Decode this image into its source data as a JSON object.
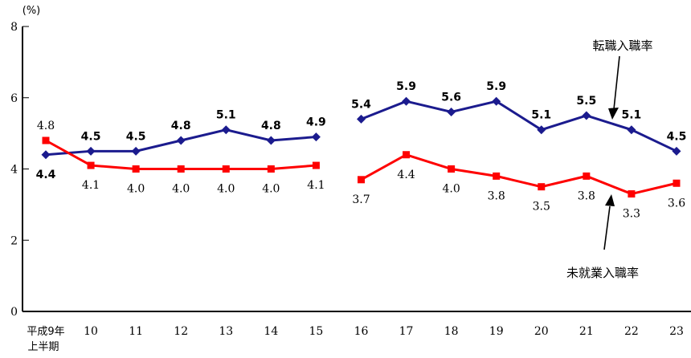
{
  "chart_data": {
    "type": "line",
    "title": "",
    "unit_label": "(%)",
    "xlabel": "",
    "ylabel": "(%)",
    "ylim": [
      0,
      8
    ],
    "yticks": [
      0,
      2,
      4,
      6,
      8
    ],
    "grid": false,
    "legend_position": "none (arrow annotations on plot)",
    "categories": [
      [
        "平成9年",
        "上半期"
      ],
      "10",
      "11",
      "12",
      "13",
      "14",
      "15",
      "16",
      "17",
      "18",
      "19",
      "20",
      "21",
      "22",
      "23"
    ],
    "gap_after_index": 6,
    "series": [
      {
        "name": "転職入職率",
        "color": "#1b1b8e",
        "marker": "diamond",
        "label_side": "above",
        "label_bold": true,
        "flip_label_indices": [
          0
        ],
        "values": [
          4.4,
          4.5,
          4.5,
          4.8,
          5.1,
          4.8,
          4.9,
          5.4,
          5.9,
          5.6,
          5.9,
          5.1,
          5.5,
          5.1,
          4.5
        ]
      },
      {
        "name": "未就業入職率",
        "color": "#fe0000",
        "marker": "square",
        "label_side": "below",
        "label_bold": false,
        "flip_label_indices": [
          0
        ],
        "values": [
          4.8,
          4.1,
          4.0,
          4.0,
          4.0,
          4.0,
          4.1,
          3.7,
          4.4,
          4.0,
          3.8,
          3.5,
          3.8,
          3.3,
          3.6
        ]
      }
    ],
    "annotations": [
      {
        "text": "転職入職率",
        "arrow_direction": "down",
        "points_at": "転職入職率 line between 21 and 22"
      },
      {
        "text": "未就業入職率",
        "arrow_direction": "up",
        "points_at": "未就業入職率 line between 21 and 22"
      }
    ],
    "colors": {
      "axis": "#000000",
      "value_label": "#000000",
      "annotation_text": "#000000",
      "background": "#ffffff"
    }
  }
}
